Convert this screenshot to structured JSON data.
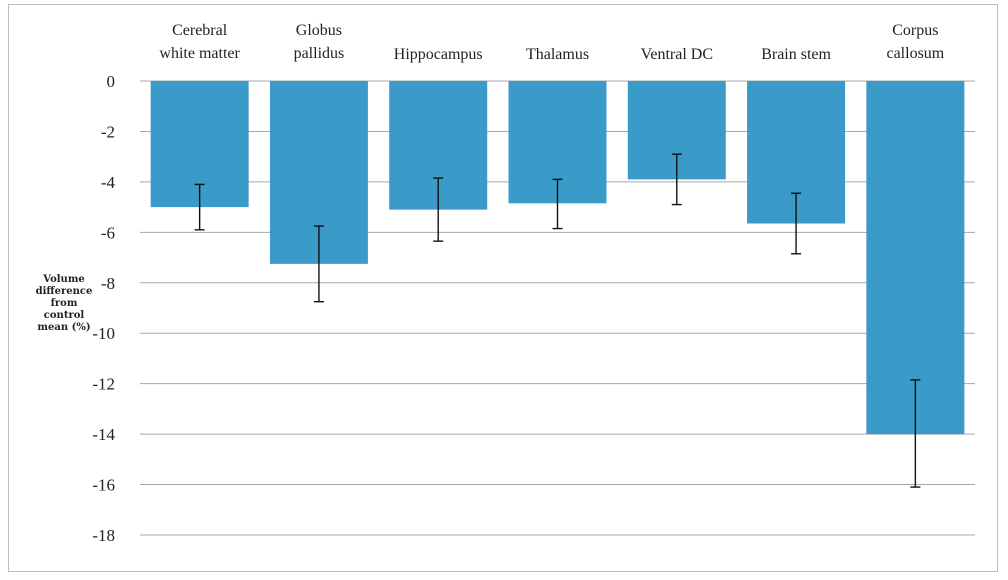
{
  "chart_data": {
    "type": "bar",
    "title": "",
    "xlabel": "",
    "ylabel": "Volume difference from control mean (%)",
    "ylabel_lines": [
      "Volume",
      "difference",
      "from",
      "control",
      "mean (%)"
    ],
    "categories": [
      "Cerebral white matter",
      "Globus pallidus",
      "Hippocampus",
      "Thalamus",
      "Ventral DC",
      "Brain stem",
      "Corpus callosum"
    ],
    "category_lines": [
      [
        "Cerebral",
        "white matter"
      ],
      [
        "Globus",
        "pallidus"
      ],
      [
        "Hippocampus"
      ],
      [
        "Thalamus"
      ],
      [
        "Ventral DC"
      ],
      [
        "Brain stem"
      ],
      [
        "Corpus",
        "callosum"
      ]
    ],
    "values": [
      -5.0,
      -7.25,
      -5.1,
      -4.85,
      -3.9,
      -5.65,
      -14.0
    ],
    "error_low": [
      -5.9,
      -8.75,
      -6.35,
      -5.85,
      -4.9,
      -6.85,
      -16.1
    ],
    "error_high": [
      -4.1,
      -5.75,
      -3.85,
      -3.9,
      -2.9,
      -4.45,
      -11.85
    ],
    "yticks": [
      0,
      -2,
      -4,
      -6,
      -8,
      -10,
      -12,
      -14,
      -16,
      -18
    ],
    "ylim": [
      -18,
      0
    ],
    "grid": true,
    "category_labels_position": "top",
    "bar_color": "#3a9bc8"
  }
}
